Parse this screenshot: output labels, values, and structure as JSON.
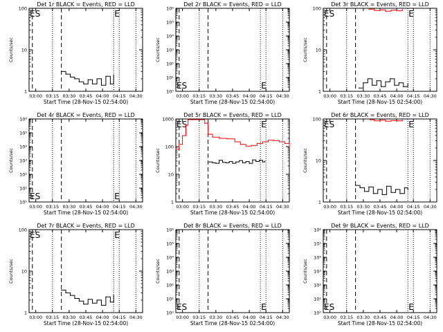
{
  "figure": {
    "xlabel": "Start Time (28-Nov-15 02:54:00)",
    "ylabel": "Counts/sec",
    "x_ticks": [
      "03:00",
      "03:15",
      "03:30",
      "03:45",
      "04:00",
      "04:15",
      "04:30"
    ]
  },
  "chart_data": [
    {
      "type": "line",
      "title": "Det 1r BLACK = Events, RED = LLD",
      "xlabel": "Start Time (28-Nov-15 02:54:00)",
      "ylabel": "Counts/sec",
      "yscale": "log",
      "xlim": [
        "02:54",
        "04:36"
      ],
      "ylim": [
        1,
        100
      ],
      "y_tick_labels": [
        "1",
        "10",
        "100"
      ],
      "grid": false,
      "markers": [
        "ES",
        "E"
      ],
      "dashed_lines": [
        "02:57",
        "03:23"
      ],
      "dotted_lines": [
        "03:15",
        "04:10",
        "04:15",
        "04:30"
      ],
      "series": [
        {
          "color": "#000000",
          "x": [
            "03:23",
            "03:27",
            "03:31",
            "03:35",
            "03:39",
            "03:43",
            "03:47",
            "03:51",
            "03:55",
            "03:59",
            "04:03",
            "04:07",
            "04:10"
          ],
          "y": [
            3,
            2.6,
            2.2,
            2,
            1.7,
            1.5,
            1.9,
            1.5,
            2,
            1.4,
            2.3,
            1.5,
            2.5
          ]
        },
        {
          "color": "#ff0000",
          "x": [],
          "y": []
        }
      ]
    },
    {
      "type": "line",
      "title": "Det 2r BLACK = Events, RED = LLD",
      "xlabel": "Start Time (28-Nov-15 02:54:00)",
      "ylabel": "Counts/sec",
      "yscale": "log",
      "xlim": [
        "02:54",
        "04:36"
      ],
      "ylim": [
        1,
        1000000
      ],
      "y_tick_labels": [
        "10⁰",
        "10¹",
        "10²",
        "10³",
        "10⁴",
        "10⁵",
        "10⁶"
      ],
      "grid": false,
      "markers": [
        "ES",
        "E"
      ],
      "dashed_lines": [
        "02:57",
        "03:23"
      ],
      "dotted_lines": [
        "03:15",
        "04:10",
        "04:15",
        "04:30"
      ],
      "series": [
        {
          "color": "#000000",
          "x": [],
          "y": []
        },
        {
          "color": "#ff0000",
          "x": [],
          "y": []
        }
      ]
    },
    {
      "type": "line",
      "title": "Det 3r BLACK = Events, RED = LLD",
      "xlabel": "Start Time (28-Nov-15 02:54:00)",
      "ylabel": "Counts/sec",
      "yscale": "log",
      "xlim": [
        "02:54",
        "04:36"
      ],
      "ylim": [
        1,
        100
      ],
      "y_tick_labels": [
        "1",
        "10",
        "100"
      ],
      "grid": false,
      "markers": [
        "ES",
        "E"
      ],
      "dashed_lines": [
        "02:57",
        "03:23"
      ],
      "dotted_lines": [
        "03:15",
        "04:10",
        "04:15",
        "04:30"
      ],
      "series": [
        {
          "color": "#000000",
          "x": [
            "03:26",
            "03:30",
            "03:34",
            "03:38",
            "03:42",
            "03:46",
            "03:50",
            "03:54",
            "03:58",
            "04:02",
            "04:06",
            "04:10"
          ],
          "y": [
            1.2,
            1.6,
            2,
            1.4,
            1.8,
            1.3,
            1.7,
            2,
            1.4,
            1.6,
            1.3,
            1.5
          ]
        },
        {
          "color": "#ff0000",
          "x": [
            "03:35",
            "03:40",
            "03:45",
            "03:50",
            "03:55",
            "04:00",
            "04:05"
          ],
          "y": [
            95,
            88,
            92,
            85,
            90,
            87,
            94
          ]
        }
      ]
    },
    {
      "type": "line",
      "title": "Det 4r BLACK = Events, RED = LLD",
      "xlabel": "Start Time (28-Nov-15 02:54:00)",
      "ylabel": "Counts/sec",
      "yscale": "log",
      "xlim": [
        "02:54",
        "04:36"
      ],
      "ylim": [
        1,
        1000000
      ],
      "y_tick_labels": [
        "10⁰",
        "10¹",
        "10²",
        "10³",
        "10⁴",
        "10⁵",
        "10⁶"
      ],
      "grid": false,
      "markers": [
        "ES",
        "E"
      ],
      "dashed_lines": [
        "02:57",
        "03:23"
      ],
      "dotted_lines": [
        "03:15",
        "04:10",
        "04:15",
        "04:30"
      ],
      "series": [
        {
          "color": "#000000",
          "x": [],
          "y": []
        },
        {
          "color": "#ff0000",
          "x": [],
          "y": []
        }
      ]
    },
    {
      "type": "line",
      "title": "Det 5r BLACK = Events, RED = LLD",
      "xlabel": "Start Time (28-Nov-15 02:54:00)",
      "ylabel": "Counts/sec",
      "yscale": "log",
      "xlim": [
        "02:54",
        "04:36"
      ],
      "ylim": [
        1,
        1000
      ],
      "y_tick_labels": [
        "1",
        "10",
        "100",
        "1000"
      ],
      "grid": false,
      "markers": [
        "ES",
        "E"
      ],
      "dashed_lines": [
        "02:57",
        "03:23"
      ],
      "dotted_lines": [
        "03:15",
        "04:10",
        "04:15",
        "04:30"
      ],
      "series": [
        {
          "color": "#000000",
          "x": [
            "03:24",
            "03:27",
            "03:30",
            "03:33",
            "03:36",
            "03:39",
            "03:42",
            "03:45",
            "03:48",
            "03:51",
            "03:54",
            "03:57",
            "04:00",
            "04:03",
            "04:06",
            "04:09",
            "04:12",
            "04:14"
          ],
          "y": [
            28,
            26,
            25,
            32,
            27,
            26,
            29,
            25,
            28,
            31,
            26,
            29,
            25,
            33,
            29,
            32,
            28,
            30
          ]
        },
        {
          "color": "#ff0000",
          "x": [
            "02:54",
            "02:57",
            "03:00",
            "03:03",
            "03:05",
            "03:08",
            "03:15",
            "03:20",
            "03:23",
            "03:27",
            "03:33",
            "03:40",
            "03:47",
            "03:52",
            "03:57",
            "04:02",
            "04:07",
            "04:12",
            "04:17",
            "04:22",
            "04:27",
            "04:32",
            "04:36"
          ],
          "y": [
            80,
            120,
            250,
            600,
            1000,
            1000,
            1000,
            700,
            280,
            220,
            200,
            190,
            150,
            120,
            105,
            110,
            130,
            150,
            170,
            165,
            150,
            130,
            100
          ]
        }
      ]
    },
    {
      "type": "line",
      "title": "Det 6r BLACK = Events, RED = LLD",
      "xlabel": "Start Time (28-Nov-15 02:54:00)",
      "ylabel": "Counts/sec",
      "yscale": "log",
      "xlim": [
        "02:54",
        "04:36"
      ],
      "ylim": [
        1,
        100
      ],
      "y_tick_labels": [
        "1",
        "10",
        "100"
      ],
      "grid": false,
      "markers": [
        "ES",
        "E"
      ],
      "dashed_lines": [
        "02:57",
        "03:23"
      ],
      "dotted_lines": [
        "03:15",
        "04:10",
        "04:15",
        "04:30"
      ],
      "series": [
        {
          "color": "#000000",
          "x": [
            "03:23",
            "03:27",
            "03:31",
            "03:35",
            "03:39",
            "03:43",
            "03:47",
            "03:51",
            "03:55",
            "03:59",
            "04:03",
            "04:07",
            "04:10"
          ],
          "y": [
            2.5,
            2.2,
            1.8,
            2.3,
            1.6,
            2,
            1.5,
            2.4,
            1.7,
            2,
            1.6,
            2.2,
            2
          ]
        },
        {
          "color": "#ff0000",
          "x": [
            "03:36",
            "03:40",
            "03:45",
            "03:50",
            "03:55",
            "04:00",
            "04:05"
          ],
          "y": [
            96,
            90,
            94,
            88,
            92,
            90,
            95
          ]
        }
      ]
    },
    {
      "type": "line",
      "title": "Det 7r BLACK = Events, RED = LLD",
      "xlabel": "Start Time (28-Nov-15 02:54:00)",
      "ylabel": "Counts/sec",
      "yscale": "log",
      "xlim": [
        "02:54",
        "04:36"
      ],
      "ylim": [
        1,
        100
      ],
      "y_tick_labels": [
        "1",
        "10",
        "100"
      ],
      "grid": false,
      "markers": [
        "ES",
        "E"
      ],
      "dashed_lines": [
        "02:57",
        "03:23"
      ],
      "dotted_lines": [
        "03:15",
        "04:10",
        "04:15",
        "04:30"
      ],
      "series": [
        {
          "color": "#000000",
          "x": [
            "03:23",
            "03:27",
            "03:31",
            "03:35",
            "03:39",
            "03:43",
            "03:47",
            "03:51",
            "03:55",
            "03:59",
            "04:03",
            "04:07",
            "04:10"
          ],
          "y": [
            3.5,
            3,
            2.6,
            2.2,
            1.9,
            1.6,
            2.1,
            1.7,
            2,
            1.5,
            2.4,
            1.8,
            2.6
          ]
        },
        {
          "color": "#ff0000",
          "x": [],
          "y": []
        }
      ]
    },
    {
      "type": "line",
      "title": "Det 8r BLACK = Events, RED = LLD",
      "xlabel": "Start Time (28-Nov-15 02:54:00)",
      "ylabel": "Counts/sec",
      "yscale": "log",
      "xlim": [
        "02:54",
        "04:36"
      ],
      "ylim": [
        1,
        1000000
      ],
      "y_tick_labels": [
        "10⁰",
        "10¹",
        "10²",
        "10³",
        "10⁴",
        "10⁵",
        "10⁶"
      ],
      "grid": false,
      "markers": [
        "ES",
        "E"
      ],
      "dashed_lines": [
        "02:57",
        "03:23"
      ],
      "dotted_lines": [
        "03:15",
        "04:10",
        "04:15",
        "04:30"
      ],
      "series": [
        {
          "color": "#000000",
          "x": [],
          "y": []
        },
        {
          "color": "#ff0000",
          "x": [],
          "y": []
        }
      ]
    },
    {
      "type": "line",
      "title": "Det 9r BLACK = Events, RED = LLD",
      "xlabel": "Start Time (28-Nov-15 02:54:00)",
      "ylabel": "Counts/sec",
      "yscale": "log",
      "xlim": [
        "02:54",
        "04:36"
      ],
      "ylim": [
        1,
        1000000
      ],
      "y_tick_labels": [
        "10⁰",
        "10¹",
        "10²",
        "10³",
        "10⁴",
        "10⁵",
        "10⁶"
      ],
      "grid": false,
      "markers": [
        "ES",
        "E"
      ],
      "dashed_lines": [
        "02:57",
        "03:23"
      ],
      "dotted_lines": [
        "03:15",
        "04:10",
        "04:15",
        "04:30"
      ],
      "series": [
        {
          "color": "#000000",
          "x": [],
          "y": []
        },
        {
          "color": "#ff0000",
          "x": [],
          "y": []
        }
      ]
    }
  ]
}
